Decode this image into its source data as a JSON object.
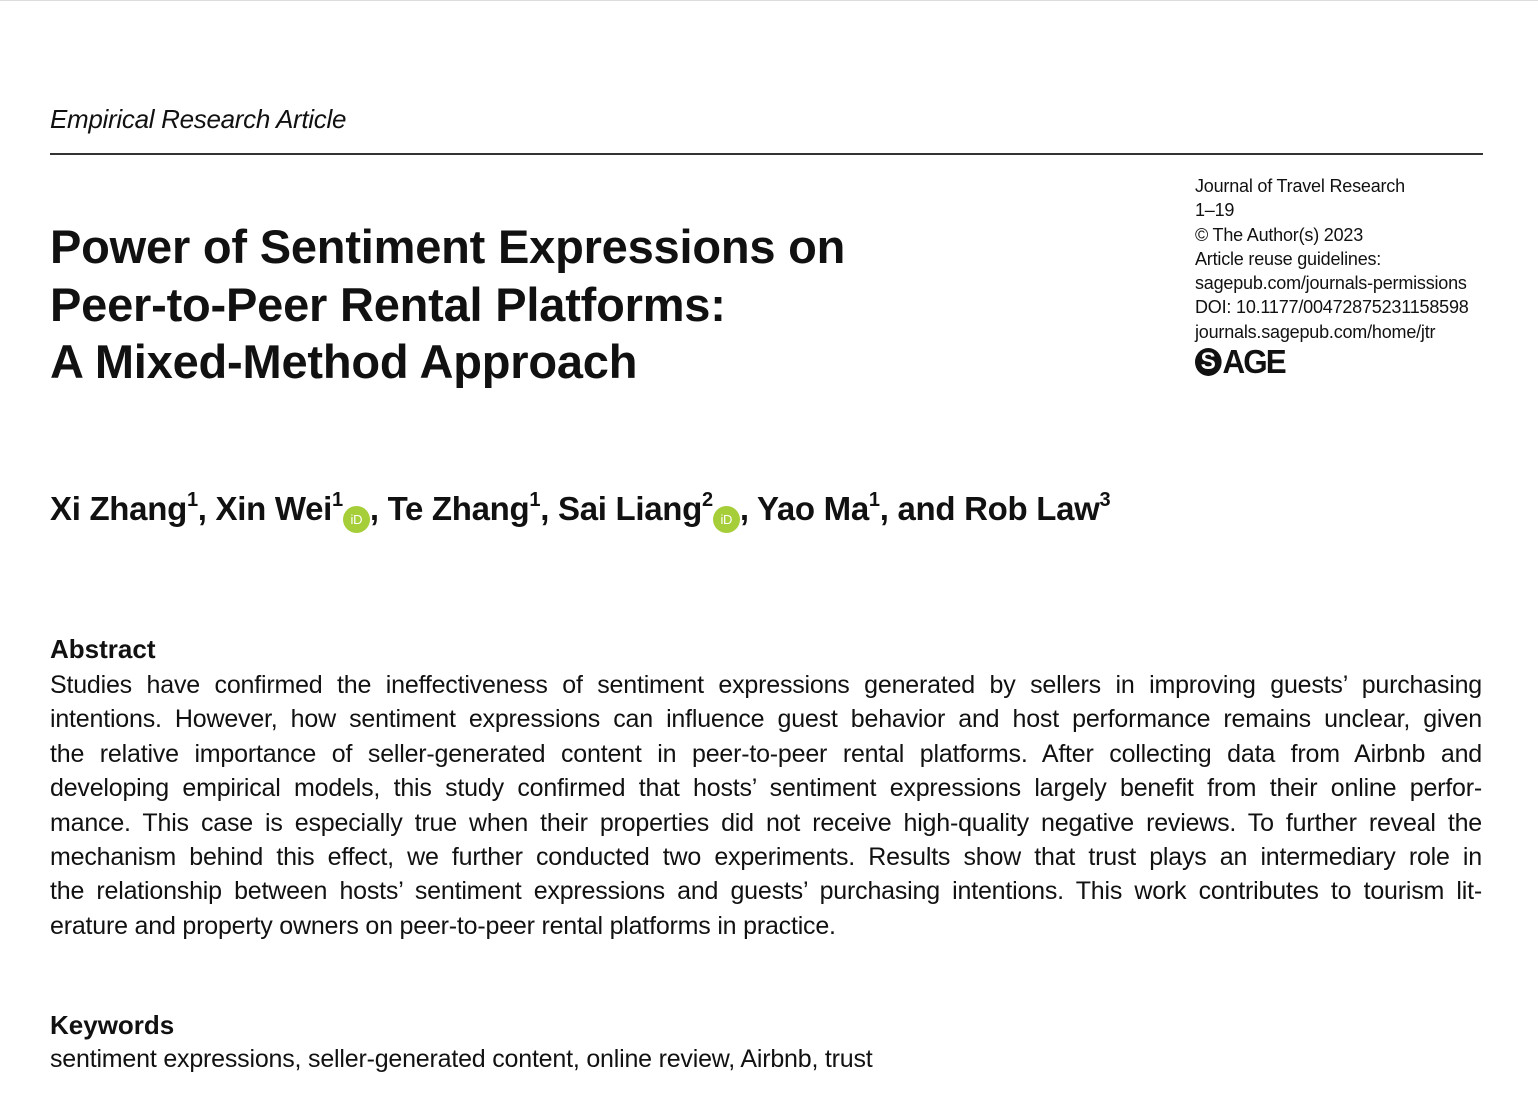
{
  "article_type": "Empirical Research Article",
  "title_lines": [
    "Power of Sentiment Expressions on",
    "Peer-to-Peer Rental Platforms:",
    "A Mixed-Method Approach"
  ],
  "meta": {
    "journal": "Journal of Travel Research",
    "pages": "1–19",
    "copyright": "© The Author(s) 2023",
    "reuse": "Article reuse guidelines:",
    "permissions": "sagepub.com/journals-permissions",
    "doi": "DOI: 10.1177/00472875231158598",
    "homepage": "journals.sagepub.com/home/jtr",
    "publisher": "SAGE"
  },
  "authors": [
    {
      "name": "Xi Zhang",
      "aff": "1"
    },
    {
      "name": "Xin Wei",
      "aff": "1",
      "orcid": "iD"
    },
    {
      "name": "Te Zhang",
      "aff": "1"
    },
    {
      "name": "Sai Liang",
      "aff": "2",
      "orcid": "iD"
    },
    {
      "name": "Yao Ma",
      "aff": "1"
    },
    {
      "name": "and Rob Law",
      "aff": "3"
    }
  ],
  "abstract": {
    "heading": "Abstract",
    "lines": [
      "Studies have confirmed the ineffectiveness of sentiment expressions generated by sellers in improving guests’ purchasing",
      "intentions. However, how sentiment expressions can influence guest behavior and host performance remains unclear, given",
      "the relative importance of seller-generated content in peer-to-peer rental platforms. After collecting data from Airbnb and",
      "developing empirical models, this study confirmed that hosts’ sentiment expressions largely benefit from their online perfor-",
      "mance. This case is especially true when their properties did not receive high-quality negative reviews. To further reveal the",
      "mechanism behind this effect, we further conducted two experiments. Results show that trust plays an intermediary role in",
      "the relationship between hosts’ sentiment expressions and guests’ purchasing intentions. This work contributes to tourism lit-",
      "erature and property owners on peer-to-peer rental platforms in practice."
    ]
  },
  "keywords": {
    "heading": "Keywords",
    "text": "sentiment expressions, seller-generated content, online review, Airbnb, trust"
  },
  "colors": {
    "orcid": "#a6ce39",
    "text": "#111111"
  }
}
